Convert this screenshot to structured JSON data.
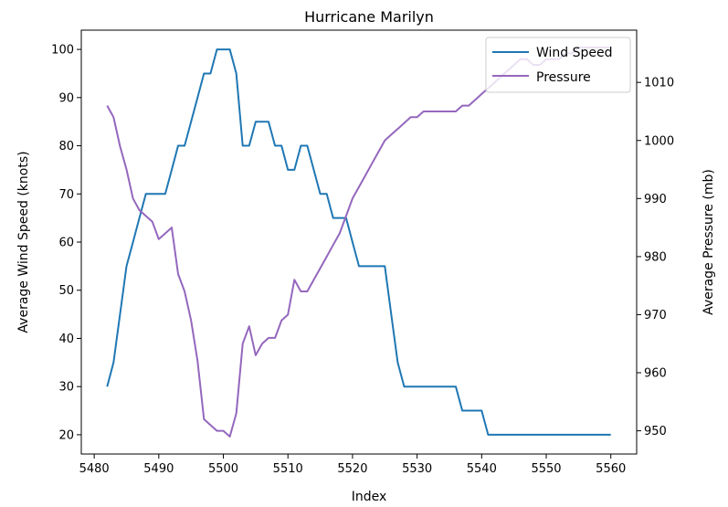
{
  "chart_data": {
    "type": "line",
    "title": "Hurricane Marilyn",
    "xlabel": "Index",
    "ylabel_left": "Average Wind Speed (knots)",
    "ylabel_right": "Average Pressure (mb)",
    "xlim": [
      5478,
      5564
    ],
    "ylim_left": [
      16,
      104
    ],
    "ylim_right": [
      946,
      1019
    ],
    "x_ticks": [
      5480,
      5490,
      5500,
      5510,
      5520,
      5530,
      5540,
      5550,
      5560
    ],
    "y_ticks_left": [
      20,
      30,
      40,
      50,
      60,
      70,
      80,
      90,
      100
    ],
    "y_ticks_right": [
      950,
      960,
      970,
      980,
      990,
      1000,
      1010
    ],
    "legend_position": "top-right",
    "grid": false,
    "series": [
      {
        "name": "Wind Speed",
        "axis": "left",
        "color": "#1f77b4",
        "points": [
          [
            5482,
            30
          ],
          [
            5483,
            35
          ],
          [
            5484,
            45
          ],
          [
            5485,
            55
          ],
          [
            5486,
            60
          ],
          [
            5487,
            65
          ],
          [
            5488,
            70
          ],
          [
            5491,
            70
          ],
          [
            5492,
            75
          ],
          [
            5493,
            80
          ],
          [
            5494,
            80
          ],
          [
            5495,
            85
          ],
          [
            5496,
            90
          ],
          [
            5497,
            95
          ],
          [
            5498,
            95
          ],
          [
            5499,
            100
          ],
          [
            5501,
            100
          ],
          [
            5502,
            95
          ],
          [
            5503,
            80
          ],
          [
            5504,
            80
          ],
          [
            5505,
            85
          ],
          [
            5507,
            85
          ],
          [
            5508,
            80
          ],
          [
            5509,
            80
          ],
          [
            5510,
            75
          ],
          [
            5511,
            75
          ],
          [
            5512,
            80
          ],
          [
            5513,
            80
          ],
          [
            5514,
            75
          ],
          [
            5515,
            70
          ],
          [
            5516,
            70
          ],
          [
            5517,
            65
          ],
          [
            5519,
            65
          ],
          [
            5520,
            60
          ],
          [
            5521,
            55
          ],
          [
            5525,
            55
          ],
          [
            5526,
            45
          ],
          [
            5527,
            35
          ],
          [
            5528,
            30
          ],
          [
            5536,
            30
          ],
          [
            5537,
            25
          ],
          [
            5540,
            25
          ],
          [
            5541,
            20
          ],
          [
            5560,
            20
          ]
        ]
      },
      {
        "name": "Pressure",
        "axis": "right",
        "color": "#9467bd",
        "points": [
          [
            5482,
            1006
          ],
          [
            5483,
            1004
          ],
          [
            5484,
            999
          ],
          [
            5485,
            995
          ],
          [
            5486,
            990
          ],
          [
            5487,
            988
          ],
          [
            5488,
            987
          ],
          [
            5489,
            986
          ],
          [
            5490,
            983
          ],
          [
            5491,
            984
          ],
          [
            5492,
            985
          ],
          [
            5493,
            977
          ],
          [
            5494,
            974
          ],
          [
            5495,
            969
          ],
          [
            5496,
            962
          ],
          [
            5497,
            952
          ],
          [
            5498,
            951
          ],
          [
            5499,
            950
          ],
          [
            5500,
            950
          ],
          [
            5501,
            949
          ],
          [
            5502,
            953
          ],
          [
            5503,
            965
          ],
          [
            5504,
            968
          ],
          [
            5505,
            963
          ],
          [
            5506,
            965
          ],
          [
            5507,
            966
          ],
          [
            5508,
            966
          ],
          [
            5509,
            969
          ],
          [
            5510,
            970
          ],
          [
            5511,
            976
          ],
          [
            5512,
            974
          ],
          [
            5513,
            974
          ],
          [
            5514,
            976
          ],
          [
            5515,
            978
          ],
          [
            5516,
            980
          ],
          [
            5517,
            982
          ],
          [
            5518,
            984
          ],
          [
            5519,
            987
          ],
          [
            5520,
            990
          ],
          [
            5521,
            992
          ],
          [
            5522,
            994
          ],
          [
            5523,
            996
          ],
          [
            5524,
            998
          ],
          [
            5525,
            1000
          ],
          [
            5526,
            1001
          ],
          [
            5527,
            1002
          ],
          [
            5528,
            1003
          ],
          [
            5529,
            1004
          ],
          [
            5530,
            1004
          ],
          [
            5531,
            1005
          ],
          [
            5536,
            1005
          ],
          [
            5537,
            1006
          ],
          [
            5538,
            1006
          ],
          [
            5539,
            1007
          ],
          [
            5540,
            1008
          ],
          [
            5541,
            1009
          ],
          [
            5542,
            1010
          ],
          [
            5543,
            1011
          ],
          [
            5544,
            1012
          ],
          [
            5545,
            1013
          ],
          [
            5546,
            1014
          ],
          [
            5547,
            1014
          ],
          [
            5548,
            1013
          ],
          [
            5549,
            1013
          ],
          [
            5550,
            1014
          ],
          [
            5552,
            1014
          ],
          [
            5553,
            1015
          ],
          [
            5554,
            1015
          ],
          [
            5555,
            1016
          ],
          [
            5560,
            1016
          ]
        ]
      }
    ]
  }
}
